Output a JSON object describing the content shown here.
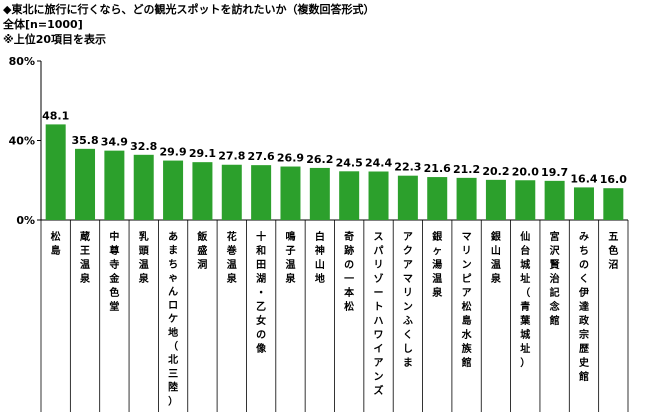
{
  "header": {
    "title": "◆東北に旅行に行くなら、どの観光スポットを訪れたいか（複数回答形式）",
    "subtitle": "全体[n=1000]",
    "note": "※上位20項目を表示"
  },
  "chart_data": {
    "type": "bar",
    "categories": [
      "松島",
      "蔵王温泉",
      "中尊寺金色堂",
      "乳頭温泉",
      "あまちゃんロケ地（北三陸）",
      "飯盛洞",
      "花巻温泉",
      "十和田湖・乙女の像",
      "鳴子温泉",
      "白神山地",
      "奇跡の一本松",
      "スパリゾートハワイアンズ",
      "アクアマリンふくしま",
      "銀ヶ湯温泉",
      "マリンピア松島水族館",
      "銀山温泉",
      "仙台城址（青葉城址）",
      "宮沢賢治記念館",
      "みちのく伊達政宗歴史館",
      "五色沼"
    ],
    "values": [
      48.1,
      35.8,
      34.9,
      32.8,
      29.9,
      29.1,
      27.8,
      27.6,
      26.9,
      26.2,
      24.5,
      24.4,
      22.3,
      21.6,
      21.2,
      20.2,
      20.0,
      19.7,
      16.4,
      16.0
    ],
    "value_labels": [
      "48.1",
      "35.8",
      "34.9",
      "32.8",
      "29.9",
      "29.1",
      "27.8",
      "27.6",
      "26.9",
      "26.2",
      "24.5",
      "24.4",
      "22.3",
      "21.6",
      "21.2",
      "20.2",
      "20.0",
      "19.7",
      "16.4",
      "16.0"
    ],
    "ylim": [
      0,
      80
    ],
    "yticks": [
      "0%",
      "40%",
      "80%"
    ],
    "ytick_values": [
      0,
      40,
      80
    ],
    "bar_color": "#2ca02c",
    "grid": false,
    "legend": "none"
  }
}
